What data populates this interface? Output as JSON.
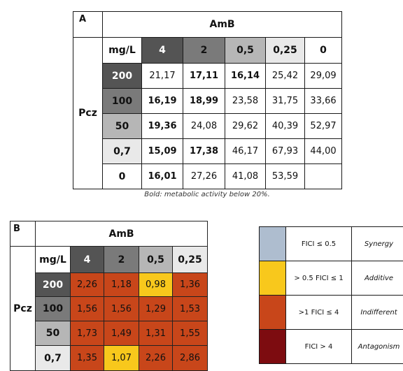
{
  "tableA": {
    "label": "A",
    "drug_col": "AmB",
    "drug_row": "Pcz",
    "unit": "mg/L",
    "col_headers": [
      "4",
      "2",
      "0,5",
      "0,25",
      "0"
    ],
    "row_headers": [
      "200",
      "100",
      "50",
      "0,7",
      "0"
    ],
    "cells": [
      [
        "21,17",
        "17,11",
        "16,14",
        "25,42",
        "29,09"
      ],
      [
        "16,19",
        "18,99",
        "23,58",
        "31,75",
        "33,66"
      ],
      [
        "19,36",
        "24,08",
        "29,62",
        "40,39",
        "52,97"
      ],
      [
        "15,09",
        "17,38",
        "46,17",
        "67,93",
        "44,00"
      ],
      [
        "16,01",
        "27,26",
        "41,08",
        "53,59",
        ""
      ]
    ],
    "footnote": "Bold: metabolic activity below 20%."
  },
  "tableB": {
    "label": "B",
    "drug_col": "AmB",
    "drug_row": "Pcz",
    "unit": "mg/L",
    "col_headers": [
      "4",
      "2",
      "0,5",
      "0,25"
    ],
    "row_headers": [
      "200",
      "100",
      "50",
      "0,7"
    ],
    "cells": [
      [
        "2,26",
        "1,18",
        "0,98",
        "1,36"
      ],
      [
        "1,56",
        "1,56",
        "1,29",
        "1,53"
      ],
      [
        "1,73",
        "1,49",
        "1,31",
        "1,55"
      ],
      [
        "1,35",
        "1,07",
        "2,26",
        "2,86"
      ]
    ]
  },
  "legend": [
    {
      "range": "FICI ≤ 0.5",
      "label": "Synergy"
    },
    {
      "range": "> 0.5 FICI ≤ 1",
      "label": "Additive"
    },
    {
      "range": ">1 FICI ≤ 4",
      "label": "Indifferent"
    },
    {
      "range": "FICI > 4",
      "label": "Antagonism"
    }
  ],
  "colors": {
    "synergy": "#aebdcf",
    "additive": "#f8c81c",
    "indifferent": "#c8461a",
    "antagonism": "#7d0c10"
  }
}
